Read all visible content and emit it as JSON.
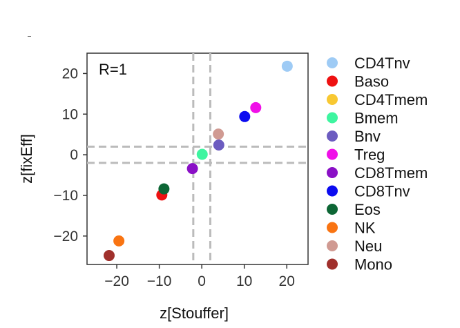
{
  "chart_data": {
    "type": "scatter",
    "annotation": "R=1",
    "xlabel": "z[Stouffer]",
    "ylabel": "z[fixEff]",
    "xlim": [
      -27,
      25
    ],
    "ylim": [
      -27,
      25
    ],
    "xticks": [
      -20,
      -10,
      0,
      10,
      20
    ],
    "yticks": [
      -20,
      -10,
      0,
      10,
      20
    ],
    "xtick_labels": [
      "−20",
      "−10",
      "0",
      "10",
      "20"
    ],
    "ytick_labels": [
      "−20",
      "−10",
      "0",
      "10",
      "20"
    ],
    "reference_lines": {
      "vertical_x": [
        -2,
        2
      ],
      "horizontal_y": [
        -2,
        2
      ],
      "style": "dashed",
      "color": "#bbbbbb"
    },
    "grid": false,
    "legend_position": "right, outside plot",
    "series": [
      {
        "name": "CD4Tnv",
        "color": "#9ecbf5",
        "x": 20.1,
        "y": 21.8
      },
      {
        "name": "Baso",
        "color": "#ee1111",
        "x": -9.4,
        "y": -9.9
      },
      {
        "name": "CD4Tmem",
        "color": "#f8c832",
        "x": null,
        "y": null
      },
      {
        "name": "Bmem",
        "color": "#3ef5a0",
        "x": 0.1,
        "y": 0.1
      },
      {
        "name": "Bnv",
        "color": "#6c5cc0",
        "x": 4.0,
        "y": 2.4
      },
      {
        "name": "Treg",
        "color": "#f010e8",
        "x": 12.7,
        "y": 11.6
      },
      {
        "name": "CD8Tmem",
        "color": "#8a10c6",
        "x": -2.2,
        "y": -3.4
      },
      {
        "name": "CD8Tnv",
        "color": "#0b0bf0",
        "x": 10.1,
        "y": 9.4
      },
      {
        "name": "Eos",
        "color": "#0d6635",
        "x": -8.9,
        "y": -8.4
      },
      {
        "name": "NK",
        "color": "#f97412",
        "x": -19.5,
        "y": -21.2
      },
      {
        "name": "Neu",
        "color": "#d09a92",
        "x": 3.9,
        "y": 5.1
      },
      {
        "name": "Mono",
        "color": "#a0302c",
        "x": -21.8,
        "y": -24.8
      }
    ]
  }
}
